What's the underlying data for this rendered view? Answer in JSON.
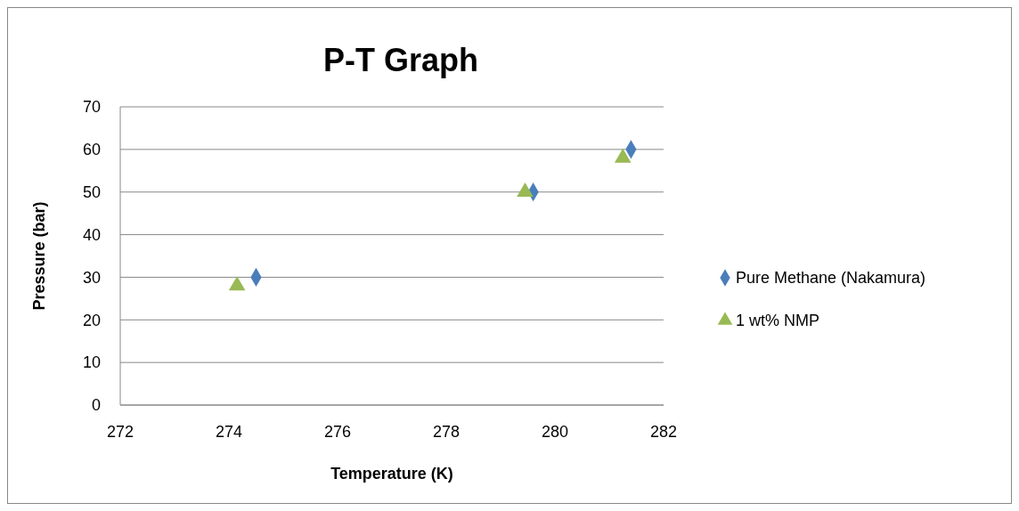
{
  "chart_data": {
    "type": "scatter",
    "title": "P-T Graph",
    "xlabel": "Temperature (K)",
    "ylabel": "Pressure (bar)",
    "series": [
      {
        "name": "Pure Methane (Nakamura)",
        "color": "#4a7ebb",
        "marker": "diamond",
        "x": [
          274.5,
          279.6,
          281.4
        ],
        "values": [
          30,
          50,
          60
        ]
      },
      {
        "name": "1 wt% NMP",
        "color": "#98b954",
        "marker": "triangle",
        "x": [
          274.15,
          279.45,
          281.25
        ],
        "values": [
          28,
          50,
          58
        ]
      }
    ],
    "xlim": [
      272,
      282
    ],
    "xticks": [
      272,
      274,
      276,
      278,
      280,
      282
    ],
    "ylim": [
      0,
      70
    ],
    "yticks": [
      0,
      10,
      20,
      30,
      40,
      50,
      60,
      70
    ],
    "grid": "y",
    "legend": "right"
  }
}
